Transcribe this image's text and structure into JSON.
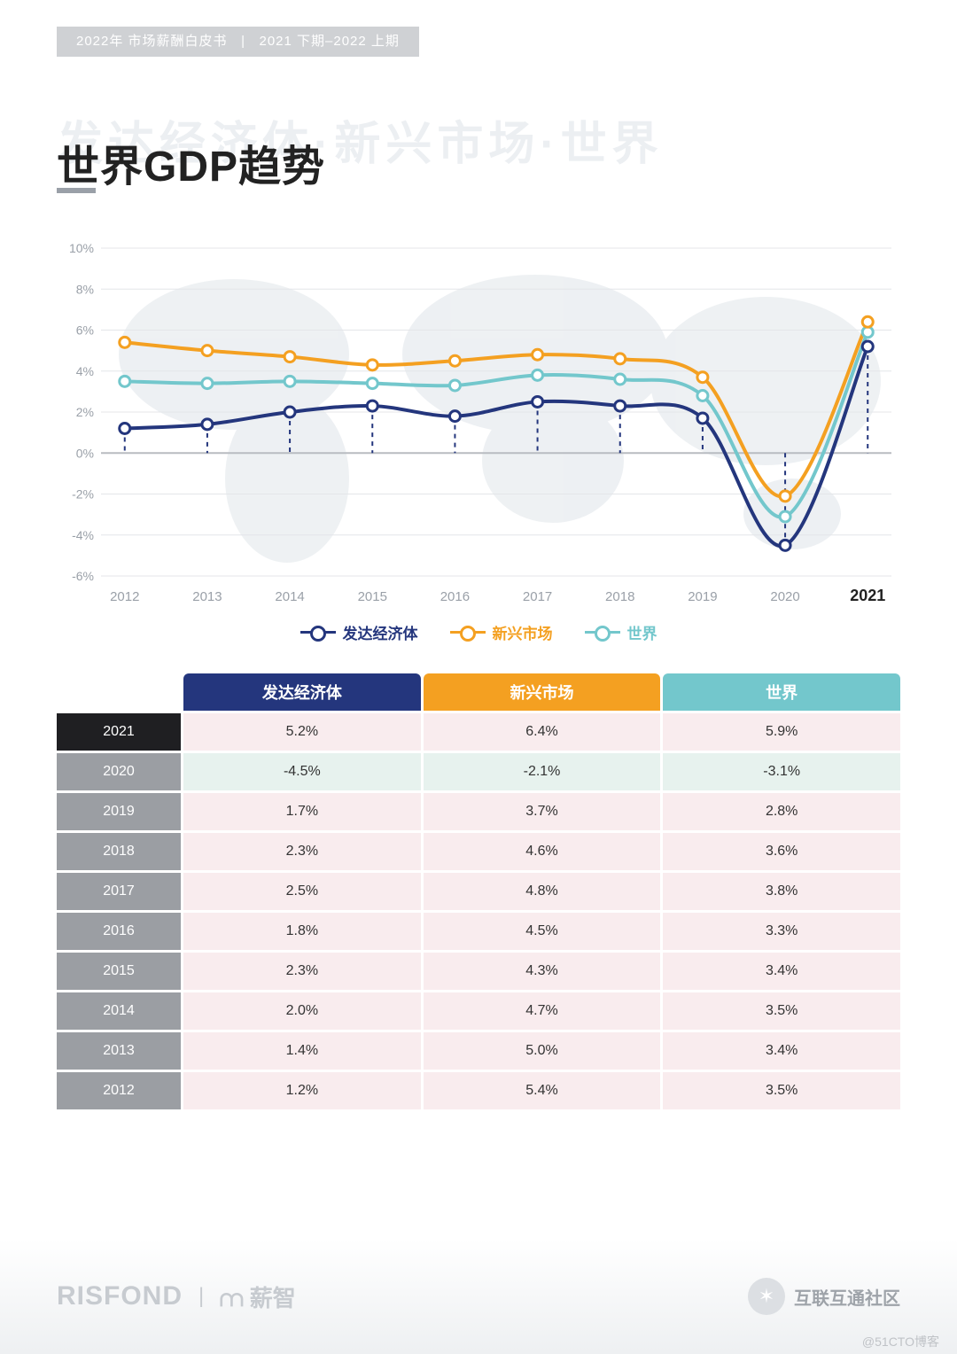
{
  "header": {
    "left": "2022年 市场薪酬白皮书",
    "sep": "|",
    "right": "2021 下期–2022 上期"
  },
  "bg_title": "发达经济体·新兴市场·世界",
  "title": "世界GDP趋势",
  "chart": {
    "type": "line",
    "background_color": "#ffffff",
    "map_silhouette_color": "#eceff2",
    "grid_color": "#e4e6e9",
    "zero_line_color": "#b8bcc1",
    "axis_label_color": "#9aa0a8",
    "axis_fontsize": 14,
    "xlim": [
      2011.4,
      2021.6
    ],
    "ylim": [
      -6,
      10
    ],
    "ytick_step": 2,
    "ytick_suffix": "%",
    "x_labels": [
      "2012",
      "2013",
      "2014",
      "2015",
      "2016",
      "2017",
      "2018",
      "2019",
      "2020",
      "2021"
    ],
    "x_highlight": "2021",
    "line_width": 4,
    "marker_radius": 6,
    "marker_fill": "#ffffff",
    "drop_line_dash": "5,5",
    "drop_line_color": "#24367d",
    "series": [
      {
        "key": "advanced",
        "label": "发达经济体",
        "color": "#24367d",
        "values": [
          1.2,
          1.4,
          2.0,
          2.3,
          1.8,
          2.5,
          2.3,
          1.7,
          -4.5,
          5.2
        ]
      },
      {
        "key": "emerging",
        "label": "新兴市场",
        "color": "#f4a021",
        "values": [
          5.4,
          5.0,
          4.7,
          4.3,
          4.5,
          4.8,
          4.6,
          3.7,
          -2.1,
          6.4
        ]
      },
      {
        "key": "world",
        "label": "世界",
        "color": "#73c7cc",
        "values": [
          3.5,
          3.4,
          3.5,
          3.4,
          3.3,
          3.8,
          3.6,
          2.8,
          -3.1,
          5.9
        ]
      }
    ],
    "legend_fontsize": 17
  },
  "table": {
    "header_bg": {
      "advanced": "#24367d",
      "emerging": "#f4a021",
      "world": "#73c7cc"
    },
    "year_cell_bg": "#9b9ea3",
    "year_cell_bg_highlight": "#1f1f22",
    "pos_row_bg": "#f9ecee",
    "neg_row_bg": "#e7f2ee",
    "columns": [
      "发达经济体",
      "新兴市场",
      "世界"
    ],
    "rows": [
      {
        "year": "2021",
        "highlight": true,
        "vals": [
          "5.2%",
          "6.4%",
          "5.9%"
        ],
        "neg": false
      },
      {
        "year": "2020",
        "highlight": false,
        "vals": [
          "-4.5%",
          "-2.1%",
          "-3.1%"
        ],
        "neg": true
      },
      {
        "year": "2019",
        "highlight": false,
        "vals": [
          "1.7%",
          "3.7%",
          "2.8%"
        ],
        "neg": false
      },
      {
        "year": "2018",
        "highlight": false,
        "vals": [
          "2.3%",
          "4.6%",
          "3.6%"
        ],
        "neg": false
      },
      {
        "year": "2017",
        "highlight": false,
        "vals": [
          "2.5%",
          "4.8%",
          "3.8%"
        ],
        "neg": false
      },
      {
        "year": "2016",
        "highlight": false,
        "vals": [
          "1.8%",
          "4.5%",
          "3.3%"
        ],
        "neg": false
      },
      {
        "year": "2015",
        "highlight": false,
        "vals": [
          "2.3%",
          "4.3%",
          "3.4%"
        ],
        "neg": false
      },
      {
        "year": "2014",
        "highlight": false,
        "vals": [
          "2.0%",
          "4.7%",
          "3.5%"
        ],
        "neg": false
      },
      {
        "year": "2013",
        "highlight": false,
        "vals": [
          "1.4%",
          "5.0%",
          "3.4%"
        ],
        "neg": false
      },
      {
        "year": "2012",
        "highlight": false,
        "vals": [
          "1.2%",
          "5.4%",
          "3.5%"
        ],
        "neg": false
      }
    ]
  },
  "footer": {
    "brand1": "RISFOND",
    "brand2": "薪智",
    "community": "互联互通社区",
    "credit": "@51CTO博客"
  }
}
